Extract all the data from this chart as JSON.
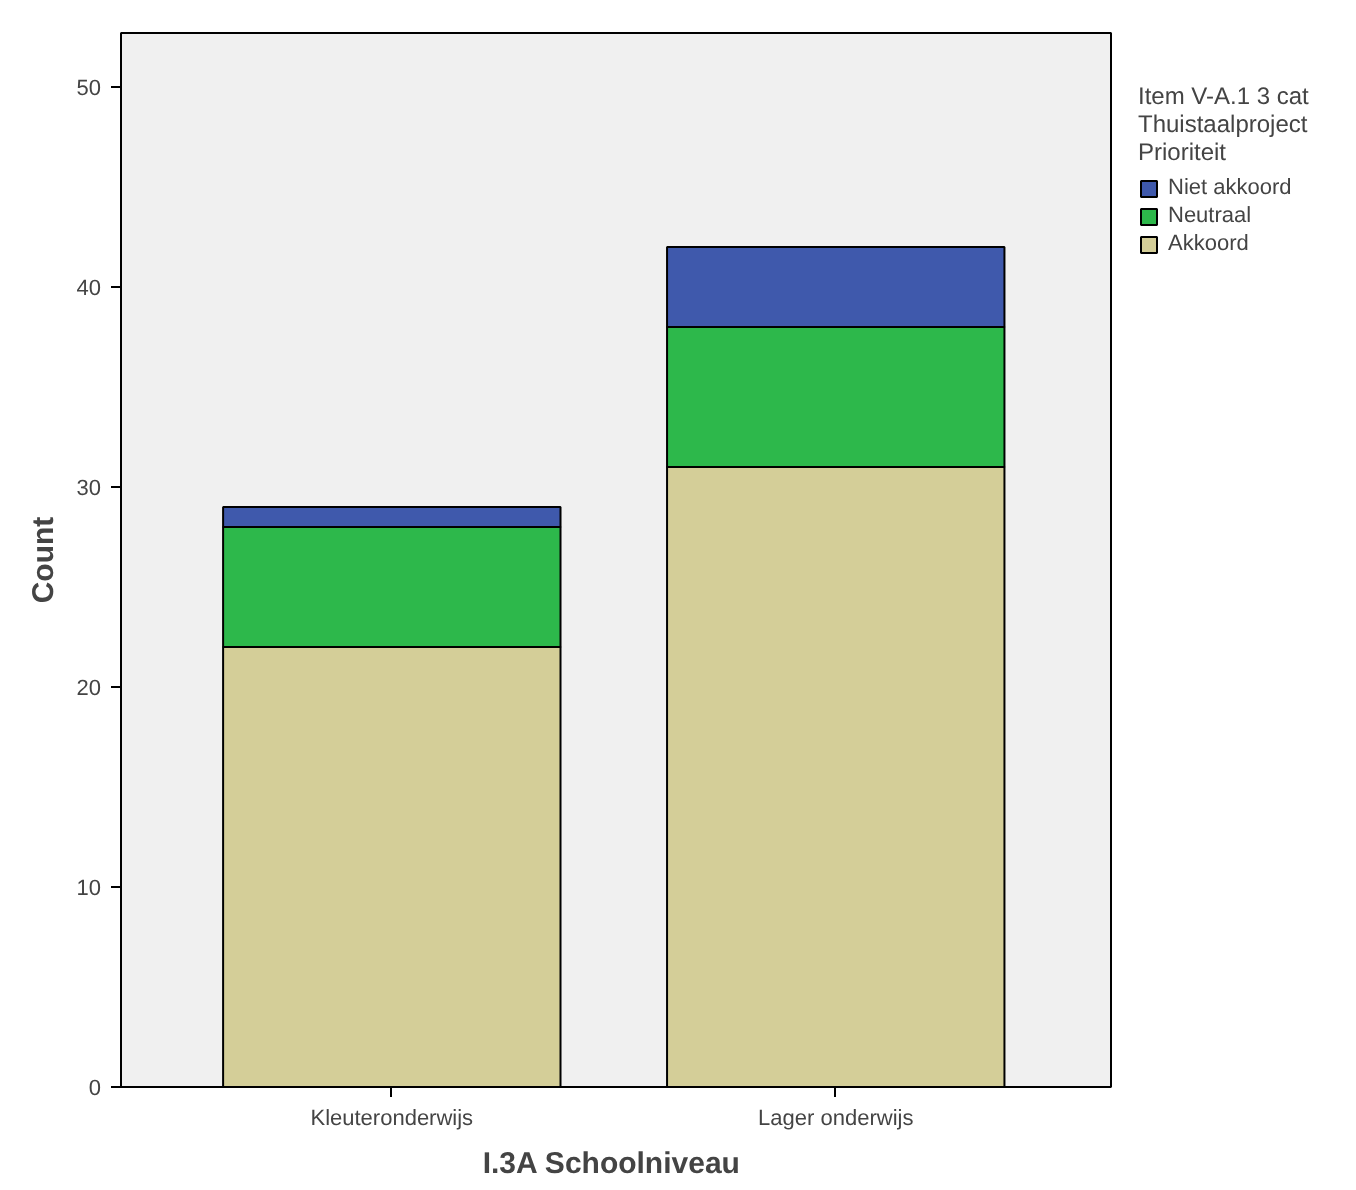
{
  "chart_data": {
    "type": "bar",
    "stacked": true,
    "xlabel": "I.3A  Schoolniveau",
    "ylabel": "Count",
    "legend_title": "Item V-A.1 3 cat\nThuistaalproject\nPrioriteit",
    "legend": "right",
    "categories": [
      "Kleuteronderwijs",
      "Lager onderwijs"
    ],
    "series": [
      {
        "name": "Akkoord",
        "color": "#d4ce98",
        "values": [
          22,
          31
        ]
      },
      {
        "name": "Neutraal",
        "color": "#2db84b",
        "values": [
          6,
          7
        ]
      },
      {
        "name": "Niet akkoord",
        "color": "#3f59ac",
        "values": [
          1,
          4
        ]
      }
    ],
    "ylim": [
      0,
      52.7
    ],
    "yticks": [
      0,
      10,
      20,
      30,
      40,
      50
    ],
    "grid": false
  }
}
